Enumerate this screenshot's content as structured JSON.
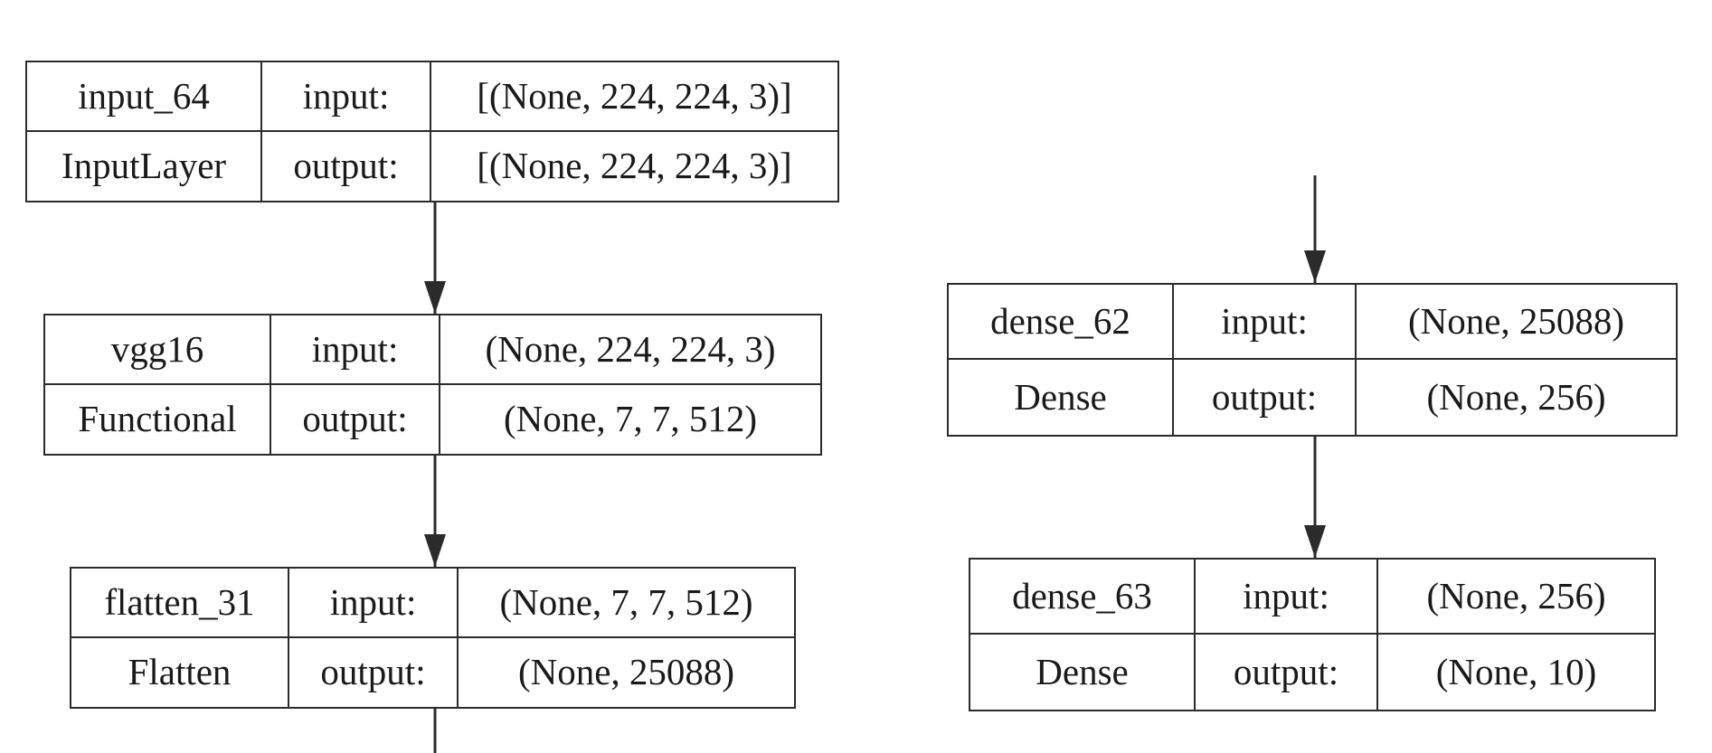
{
  "layers": {
    "input_64": {
      "name": "input_64",
      "type": "InputLayer",
      "input_label": "input:",
      "output_label": "output:",
      "input_shape": "[(None, 224, 224, 3)]",
      "output_shape": "[(None, 224, 224, 3)]"
    },
    "vgg16": {
      "name": "vgg16",
      "type": "Functional",
      "input_label": "input:",
      "output_label": "output:",
      "input_shape": "(None, 224, 224, 3)",
      "output_shape": "(None, 7, 7, 512)"
    },
    "flatten_31": {
      "name": "flatten_31",
      "type": "Flatten",
      "input_label": "input:",
      "output_label": "output:",
      "input_shape": "(None, 7, 7, 512)",
      "output_shape": "(None, 25088)"
    },
    "dense_62": {
      "name": "dense_62",
      "type": "Dense",
      "input_label": "input:",
      "output_label": "output:",
      "input_shape": "(None, 25088)",
      "output_shape": "(None, 256)"
    },
    "dense_63": {
      "name": "dense_63",
      "type": "Dense",
      "input_label": "input:",
      "output_label": "output:",
      "input_shape": "(None, 256)",
      "output_shape": "(None, 10)"
    }
  },
  "edges": [
    {
      "from": "input_64",
      "to": "vgg16"
    },
    {
      "from": "vgg16",
      "to": "flatten_31"
    },
    {
      "from": "flatten_31",
      "to": "dense_62"
    },
    {
      "from": "dense_62",
      "to": "dense_63"
    }
  ],
  "colors": {
    "line": "#2b2b2b",
    "background": "#ffffff"
  }
}
